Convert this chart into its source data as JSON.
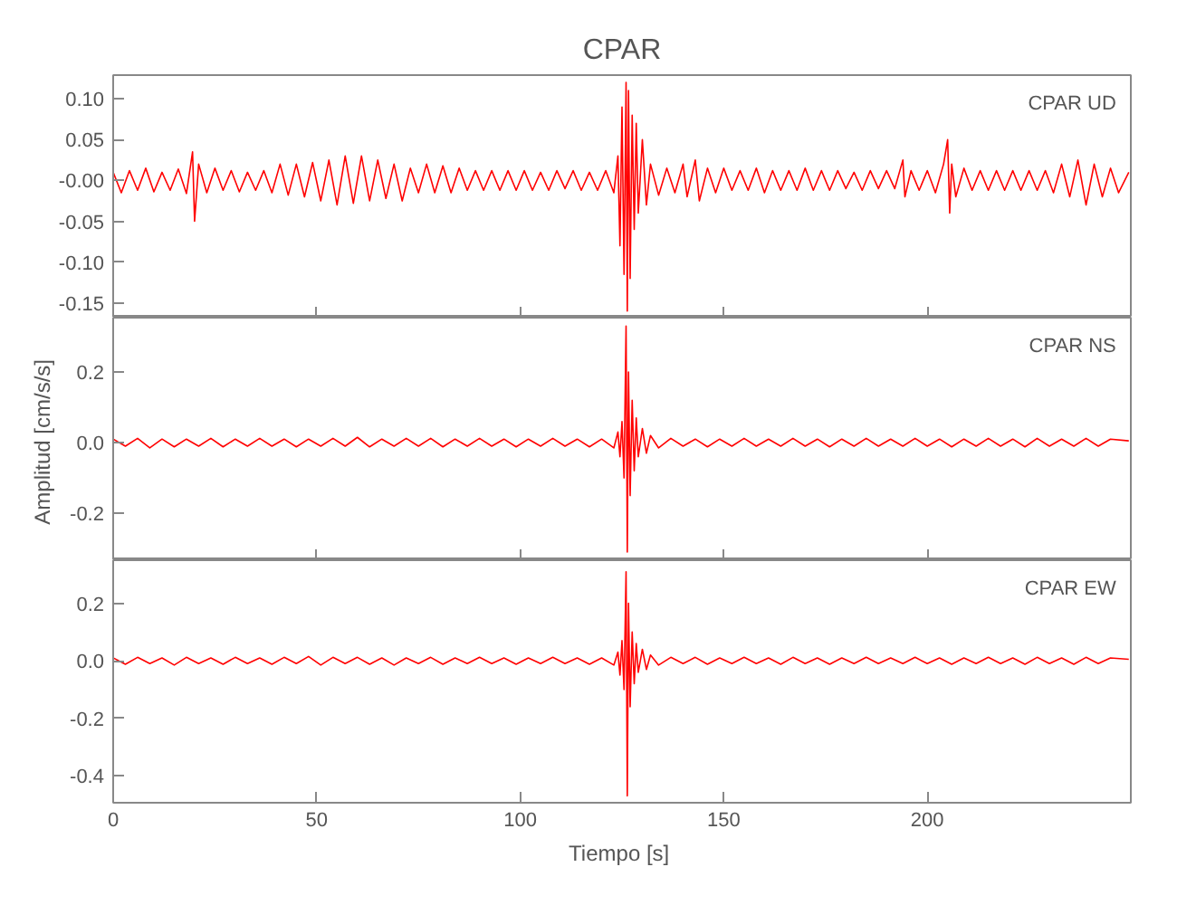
{
  "chart_data": [
    {
      "type": "line",
      "title": "CPAR",
      "annotations": [
        "CPAR   UD"
      ],
      "xlim": [
        0,
        250
      ],
      "xticks": [
        0,
        50,
        100,
        150,
        200
      ],
      "ylim": [
        -0.168,
        0.129
      ],
      "yticks": [
        {
          "value": 0.1,
          "label": "0.10"
        },
        {
          "value": 0.05,
          "label": "0.05"
        },
        {
          "value": 0,
          "label": "-0.00"
        },
        {
          "value": -0.05,
          "label": "-0.05"
        },
        {
          "value": -0.1,
          "label": "-0.10"
        },
        {
          "value": -0.15,
          "label": "-0.15"
        }
      ],
      "tick_labels": "y",
      "grid": false,
      "series": [
        {
          "color": "#ff0000",
          "x": [
            0,
            2,
            4,
            6,
            8,
            10,
            12,
            14,
            16,
            18,
            19.5,
            20,
            21,
            23,
            25,
            27,
            29,
            31,
            33,
            35,
            37,
            39,
            41,
            43,
            45,
            47,
            49,
            51,
            53,
            55,
            57,
            59,
            61,
            63,
            65,
            67,
            69,
            71,
            73,
            75,
            77,
            79,
            81,
            83,
            85,
            87,
            89,
            91,
            93,
            95,
            97,
            99,
            101,
            103,
            105,
            107,
            109,
            111,
            113,
            115,
            117,
            119,
            121,
            123,
            124,
            124.5,
            125,
            125.5,
            126,
            126.3,
            126.6,
            127,
            127.5,
            128,
            128.5,
            129,
            130,
            131,
            132,
            134,
            136,
            138,
            140,
            141,
            143,
            144,
            146,
            148,
            150,
            152,
            154,
            156,
            158,
            160,
            162,
            164,
            166,
            168,
            170,
            172,
            174,
            176,
            178,
            180,
            182,
            184,
            186,
            188,
            190,
            192,
            194,
            194.5,
            196,
            198,
            200,
            202,
            204,
            205,
            205.5,
            206,
            207,
            209,
            211,
            213,
            215,
            217,
            219,
            221,
            223,
            225,
            227,
            229,
            231,
            233,
            235,
            237,
            239,
            241,
            243,
            245,
            247,
            249.5
          ],
          "values": [
            0.01,
            -0.015,
            0.012,
            -0.012,
            0.015,
            -0.014,
            0.01,
            -0.012,
            0.014,
            -0.016,
            0.035,
            -0.05,
            0.02,
            -0.015,
            0.015,
            -0.012,
            0.012,
            -0.014,
            0.01,
            -0.012,
            0.012,
            -0.015,
            0.02,
            -0.018,
            0.02,
            -0.02,
            0.022,
            -0.025,
            0.025,
            -0.03,
            0.03,
            -0.028,
            0.03,
            -0.025,
            0.025,
            -0.022,
            0.02,
            -0.025,
            0.015,
            -0.015,
            0.02,
            -0.015,
            0.018,
            -0.015,
            0.015,
            -0.012,
            0.012,
            -0.012,
            0.012,
            -0.012,
            0.012,
            -0.012,
            0.012,
            -0.012,
            0.01,
            -0.012,
            0.012,
            -0.01,
            0.012,
            -0.012,
            0.01,
            -0.012,
            0.012,
            -0.015,
            0.03,
            -0.08,
            0.09,
            -0.115,
            0.12,
            -0.16,
            0.11,
            -0.12,
            0.08,
            -0.06,
            0.07,
            -0.04,
            0.05,
            -0.03,
            0.02,
            -0.018,
            0.015,
            -0.015,
            0.02,
            -0.02,
            0.025,
            -0.025,
            0.015,
            -0.015,
            0.015,
            -0.012,
            0.012,
            -0.012,
            0.015,
            -0.015,
            0.012,
            -0.012,
            0.012,
            -0.012,
            0.015,
            -0.012,
            0.012,
            -0.012,
            0.012,
            -0.01,
            0.01,
            -0.012,
            0.012,
            -0.01,
            0.012,
            -0.01,
            0.025,
            -0.02,
            0.012,
            -0.012,
            0.012,
            -0.015,
            0.02,
            0.05,
            -0.04,
            0.02,
            -0.02,
            0.015,
            -0.012,
            0.012,
            -0.012,
            0.012,
            -0.012,
            0.012,
            -0.012,
            0.012,
            -0.012,
            0.012,
            -0.015,
            0.02,
            -0.02,
            0.025,
            -0.03,
            0.02,
            -0.02,
            0.015,
            -0.015,
            0.01
          ]
        }
      ]
    },
    {
      "type": "line",
      "ylabel": "Amplitud  [cm/s/s]",
      "annotations": [
        "CPAR   NS"
      ],
      "xlim": [
        0,
        250
      ],
      "xticks": [
        0,
        50,
        100,
        150,
        200
      ],
      "ylim": [
        -0.333,
        0.354
      ],
      "yticks": [
        {
          "value": 0.2,
          "label": "0.2"
        },
        {
          "value": 0,
          "label": "0.0"
        },
        {
          "value": -0.2,
          "label": "-0.2"
        }
      ],
      "tick_labels": "y",
      "grid": false,
      "series": [
        {
          "color": "#ff0000",
          "x": [
            0,
            3,
            6,
            9,
            12,
            15,
            18,
            21,
            24,
            27,
            30,
            33,
            36,
            39,
            42,
            45,
            48,
            51,
            54,
            57,
            60,
            63,
            66,
            69,
            72,
            75,
            78,
            81,
            84,
            87,
            90,
            93,
            96,
            99,
            102,
            105,
            108,
            111,
            114,
            117,
            120,
            123,
            124,
            124.5,
            125,
            125.5,
            126,
            126.3,
            126.6,
            127,
            127.5,
            128,
            128.5,
            129,
            130,
            131,
            132,
            134,
            137,
            140,
            143,
            146,
            149,
            152,
            155,
            158,
            161,
            164,
            167,
            170,
            173,
            176,
            179,
            182,
            185,
            188,
            191,
            194,
            197,
            200,
            203,
            206,
            209,
            212,
            215,
            218,
            221,
            224,
            227,
            230,
            233,
            236,
            239,
            242,
            245,
            249.5
          ],
          "values": [
            0.01,
            -0.01,
            0.012,
            -0.015,
            0.01,
            -0.012,
            0.01,
            -0.01,
            0.012,
            -0.012,
            0.01,
            -0.01,
            0.012,
            -0.01,
            0.01,
            -0.012,
            0.01,
            -0.01,
            0.012,
            -0.01,
            0.015,
            -0.012,
            0.01,
            -0.01,
            0.012,
            -0.01,
            0.012,
            -0.012,
            0.01,
            -0.01,
            0.012,
            -0.01,
            0.01,
            -0.012,
            0.01,
            -0.01,
            0.012,
            -0.01,
            0.01,
            -0.012,
            0.01,
            -0.015,
            0.03,
            -0.04,
            0.06,
            -0.1,
            0.33,
            -0.31,
            0.2,
            -0.15,
            0.12,
            -0.08,
            0.07,
            -0.04,
            0.04,
            -0.03,
            0.02,
            -0.015,
            0.012,
            -0.01,
            0.01,
            -0.012,
            0.01,
            -0.01,
            0.012,
            -0.01,
            0.01,
            -0.01,
            0.012,
            -0.01,
            0.01,
            -0.012,
            0.01,
            -0.01,
            0.012,
            -0.01,
            0.01,
            -0.01,
            0.012,
            -0.01,
            0.01,
            -0.012,
            0.01,
            -0.01,
            0.012,
            -0.01,
            0.01,
            -0.012,
            0.012,
            -0.01,
            0.01,
            -0.01,
            0.012,
            -0.01,
            0.01,
            0.005
          ]
        }
      ]
    },
    {
      "type": "line",
      "xlabel": "Tiempo  [s]",
      "annotations": [
        "CPAR   EW"
      ],
      "xlim": [
        0,
        250
      ],
      "xticks": [
        0,
        50,
        100,
        150,
        200
      ],
      "ylim": [
        -0.494,
        0.35
      ],
      "yticks": [
        {
          "value": 0.2,
          "label": "0.2"
        },
        {
          "value": 0,
          "label": "0.0"
        },
        {
          "value": -0.2,
          "label": "-0.2"
        },
        {
          "value": -0.4,
          "label": "-0.4"
        }
      ],
      "grid": false,
      "series": [
        {
          "color": "#ff0000",
          "x": [
            0,
            3,
            6,
            9,
            12,
            15,
            18,
            21,
            24,
            27,
            30,
            33,
            36,
            39,
            42,
            45,
            48,
            51,
            54,
            57,
            60,
            63,
            66,
            69,
            72,
            75,
            78,
            81,
            84,
            87,
            90,
            93,
            96,
            99,
            102,
            105,
            108,
            111,
            114,
            117,
            120,
            123,
            124,
            124.5,
            125,
            125.5,
            126,
            126.3,
            126.6,
            127,
            127.5,
            128,
            128.5,
            129,
            130,
            131,
            132,
            134,
            137,
            140,
            143,
            146,
            149,
            152,
            155,
            158,
            161,
            164,
            167,
            170,
            173,
            176,
            179,
            182,
            185,
            188,
            191,
            194,
            197,
            200,
            203,
            206,
            209,
            212,
            215,
            218,
            221,
            224,
            227,
            230,
            233,
            236,
            239,
            242,
            245,
            249.5
          ],
          "values": [
            0.01,
            -0.012,
            0.012,
            -0.01,
            0.01,
            -0.015,
            0.012,
            -0.01,
            0.01,
            -0.012,
            0.012,
            -0.01,
            0.01,
            -0.012,
            0.012,
            -0.01,
            0.015,
            -0.015,
            0.012,
            -0.01,
            0.012,
            -0.012,
            0.01,
            -0.015,
            0.01,
            -0.01,
            0.012,
            -0.012,
            0.01,
            -0.01,
            0.012,
            -0.01,
            0.01,
            -0.012,
            0.01,
            -0.01,
            0.012,
            -0.01,
            0.01,
            -0.012,
            0.01,
            -0.015,
            0.03,
            -0.05,
            0.07,
            -0.1,
            0.31,
            -0.47,
            0.2,
            -0.16,
            0.1,
            -0.08,
            0.06,
            -0.04,
            0.04,
            -0.03,
            0.02,
            -0.015,
            0.012,
            -0.01,
            0.012,
            -0.012,
            0.01,
            -0.01,
            0.012,
            -0.01,
            0.01,
            -0.012,
            0.012,
            -0.01,
            0.01,
            -0.012,
            0.01,
            -0.01,
            0.012,
            -0.01,
            0.01,
            -0.01,
            0.012,
            -0.01,
            0.01,
            -0.012,
            0.01,
            -0.01,
            0.012,
            -0.01,
            0.01,
            -0.012,
            0.012,
            -0.01,
            0.01,
            -0.012,
            0.012,
            -0.01,
            0.01,
            0.005
          ]
        }
      ]
    }
  ]
}
